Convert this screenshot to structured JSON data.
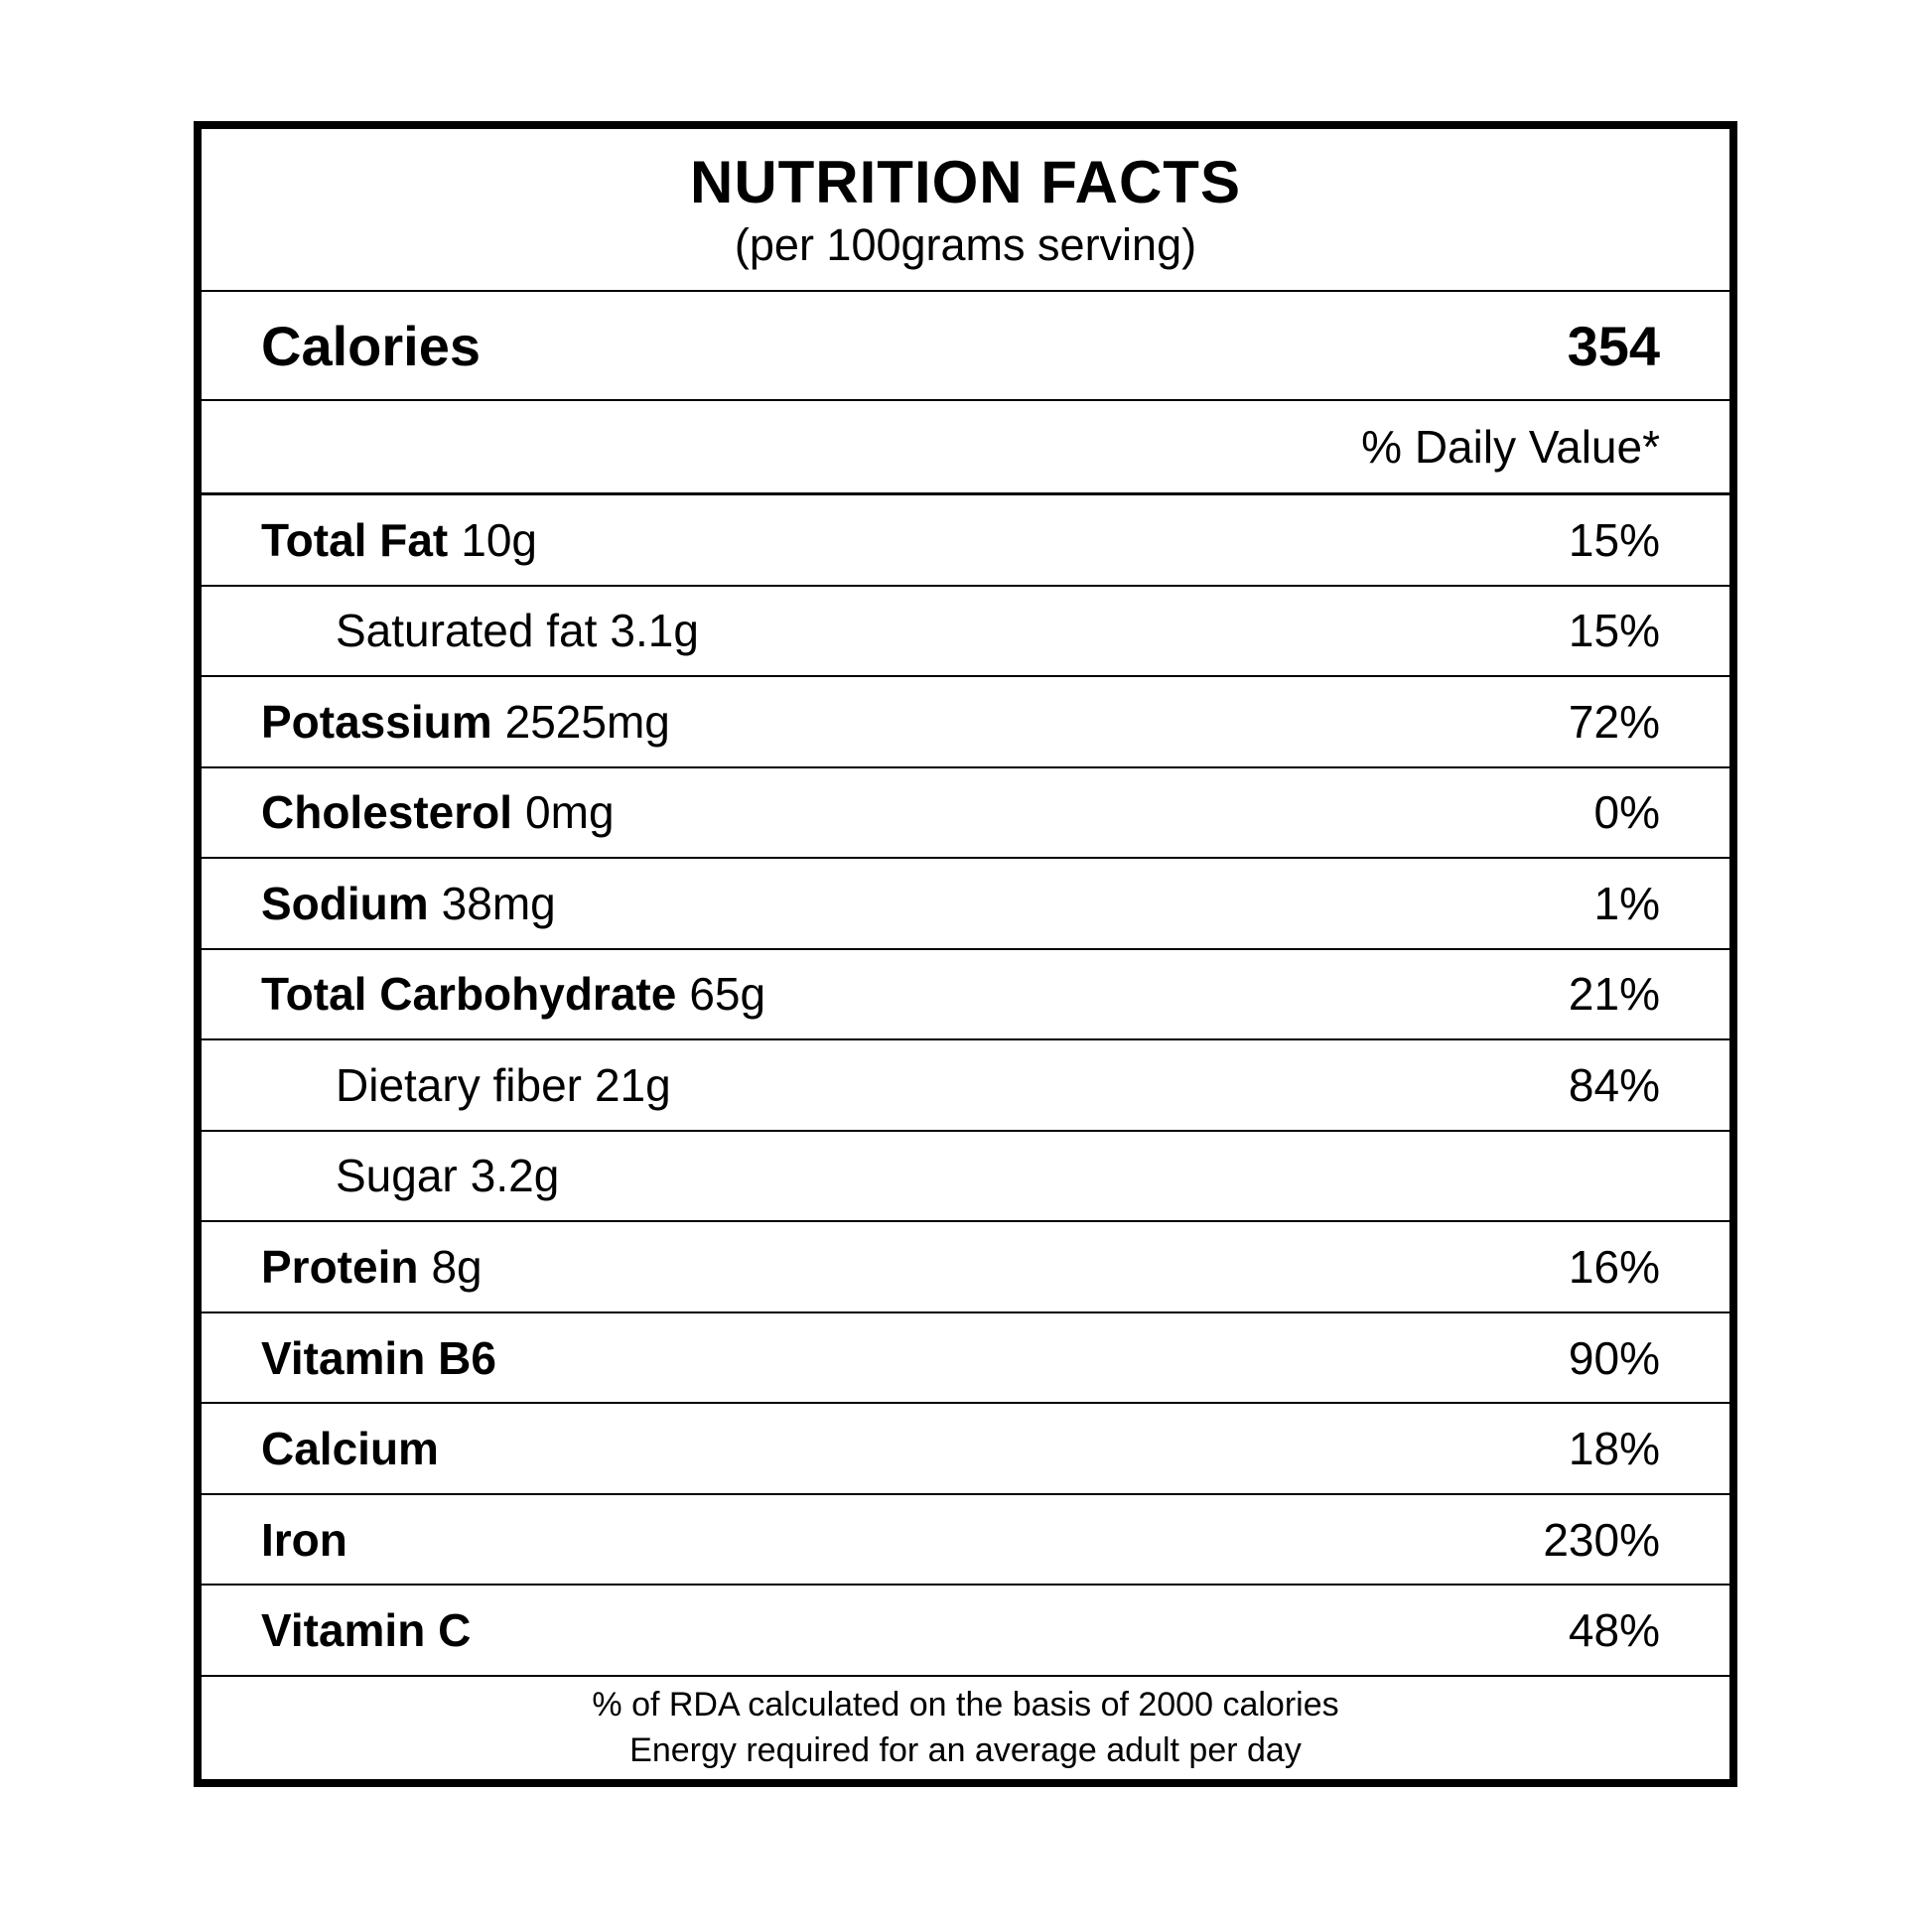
{
  "header": {
    "title": "NUTRITION FACTS",
    "subtitle": "(per 100grams serving)"
  },
  "calories": {
    "label": "Calories",
    "value": "354"
  },
  "daily_value_header": "% Daily Value*",
  "rows": [
    {
      "name": "Total Fat",
      "amount": "10g",
      "percent": "15%",
      "bold": true,
      "indent": false
    },
    {
      "name": "Saturated fat",
      "amount": "3.1g",
      "percent": "15%",
      "bold": false,
      "indent": true
    },
    {
      "name": "Potassium",
      "amount": "2525mg",
      "percent": "72%",
      "bold": true,
      "indent": false
    },
    {
      "name": "Cholesterol",
      "amount": "0mg",
      "percent": "0%",
      "bold": true,
      "indent": false
    },
    {
      "name": "Sodium",
      "amount": "38mg",
      "percent": "1%",
      "bold": true,
      "indent": false
    },
    {
      "name": "Total Carbohydrate",
      "amount": "65g",
      "percent": "21%",
      "bold": true,
      "indent": false
    },
    {
      "name": "Dietary fiber",
      "amount": "21g",
      "percent": "84%",
      "bold": false,
      "indent": true
    },
    {
      "name": "Sugar",
      "amount": "3.2g",
      "percent": "",
      "bold": false,
      "indent": true
    },
    {
      "name": "Protein",
      "amount": "8g",
      "percent": "16%",
      "bold": true,
      "indent": false
    },
    {
      "name": "Vitamin B6",
      "amount": "",
      "percent": "90%",
      "bold": true,
      "indent": false
    },
    {
      "name": "Calcium",
      "amount": "",
      "percent": "18%",
      "bold": true,
      "indent": false
    },
    {
      "name": "Iron",
      "amount": "",
      "percent": "230%",
      "bold": true,
      "indent": false
    },
    {
      "name": "Vitamin C",
      "amount": "",
      "percent": "48%",
      "bold": true,
      "indent": false
    }
  ],
  "footer": {
    "line1": "% of RDA calculated on the basis of 2000 calories",
    "line2": "Energy required for an average adult per day"
  },
  "colors": {
    "text": "#000000",
    "background": "#ffffff",
    "border": "#000000"
  }
}
